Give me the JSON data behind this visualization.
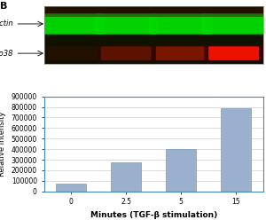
{
  "panel_label": "B",
  "bg_color": "#ffffff",
  "gel_bg_color": "#111100",
  "actin_label": "actin",
  "pp38_label": "pp38",
  "actin_color_core": "#00ee00",
  "actin_color_glow": "#006600",
  "pp38_colors": [
    "#330000",
    "#550000",
    "#880000",
    "#cc1100"
  ],
  "bar_categories": [
    "0",
    "2.5",
    "5",
    "15"
  ],
  "bar_values": [
    70000,
    275000,
    400000,
    790000
  ],
  "bar_color": "#9bb0cc",
  "bar_edge_color": "#7a99bb",
  "ylim": [
    0,
    900000
  ],
  "yticks": [
    0,
    100000,
    200000,
    300000,
    400000,
    500000,
    600000,
    700000,
    800000,
    900000
  ],
  "xlabel": "Minutes (TGF-β stimulation)",
  "ylabel": "Relative intensity",
  "grid_color": "#cccccc",
  "axis_box_color": "#4488bb",
  "xlabel_fontsize": 6.5,
  "ylabel_fontsize": 6,
  "tick_fontsize": 5.5,
  "label_fontsize": 6,
  "arrow_fontsize": 5.5
}
